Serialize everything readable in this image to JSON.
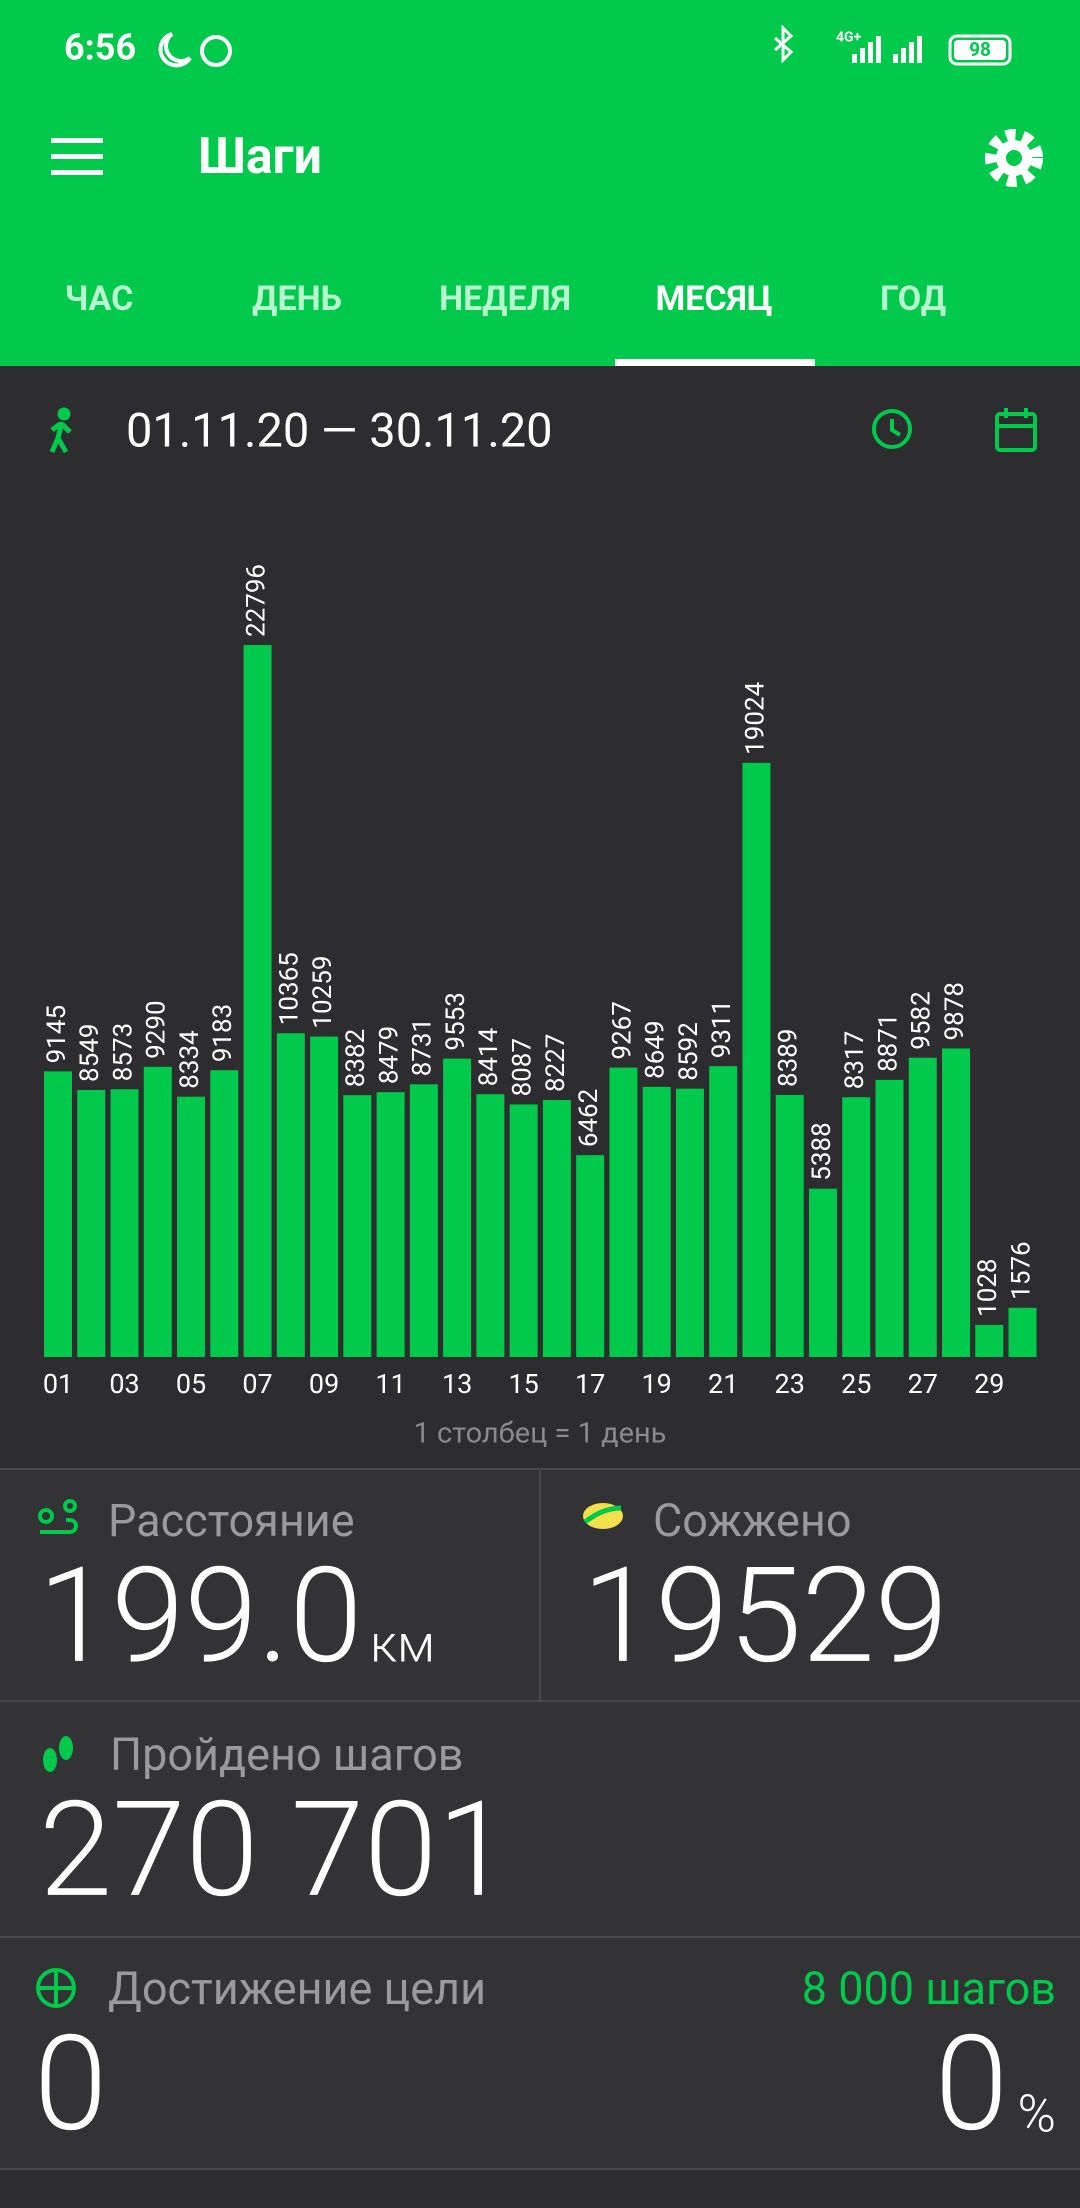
{
  "status_bar": {
    "time": "6:56",
    "network": "4G+",
    "battery": "98"
  },
  "toolbar": {
    "title": "Шаги"
  },
  "tabs": [
    "ЧАС",
    "ДЕНЬ",
    "НЕДЕЛЯ",
    "МЕСЯЦ",
    "ГОД"
  ],
  "date_range": "01.11.20 — 30.11.20",
  "chart_data": {
    "type": "bar",
    "color": "#00c94b",
    "categories": [
      "01",
      null,
      "03",
      null,
      "05",
      null,
      "07",
      null,
      "09",
      null,
      "11",
      null,
      "13",
      null,
      "15",
      null,
      "17",
      null,
      "19",
      null,
      "21",
      null,
      "23",
      null,
      "25",
      null,
      "27",
      null,
      "29",
      null
    ],
    "values": [
      9145,
      8549,
      8573,
      9290,
      8334,
      9183,
      22796,
      10365,
      10259,
      8382,
      8479,
      8731,
      9553,
      8414,
      8087,
      8227,
      6462,
      9267,
      8649,
      8592,
      9311,
      19024,
      8389,
      5388,
      8317,
      8871,
      9582,
      9878,
      1028,
      1576
    ],
    "caption": "1 столбец = 1 день"
  },
  "cards": {
    "distance": {
      "label": "Расстояние",
      "value": "199.0",
      "unit": "км"
    },
    "burned": {
      "label": "Сожжено",
      "value": "19529"
    },
    "steps": {
      "label": "Пройдено шагов",
      "value": "270 701"
    },
    "goal": {
      "label": "Достижение цели",
      "target": "8 000 шагов",
      "value": "0",
      "percent": "0",
      "percent_unit": "%"
    }
  }
}
